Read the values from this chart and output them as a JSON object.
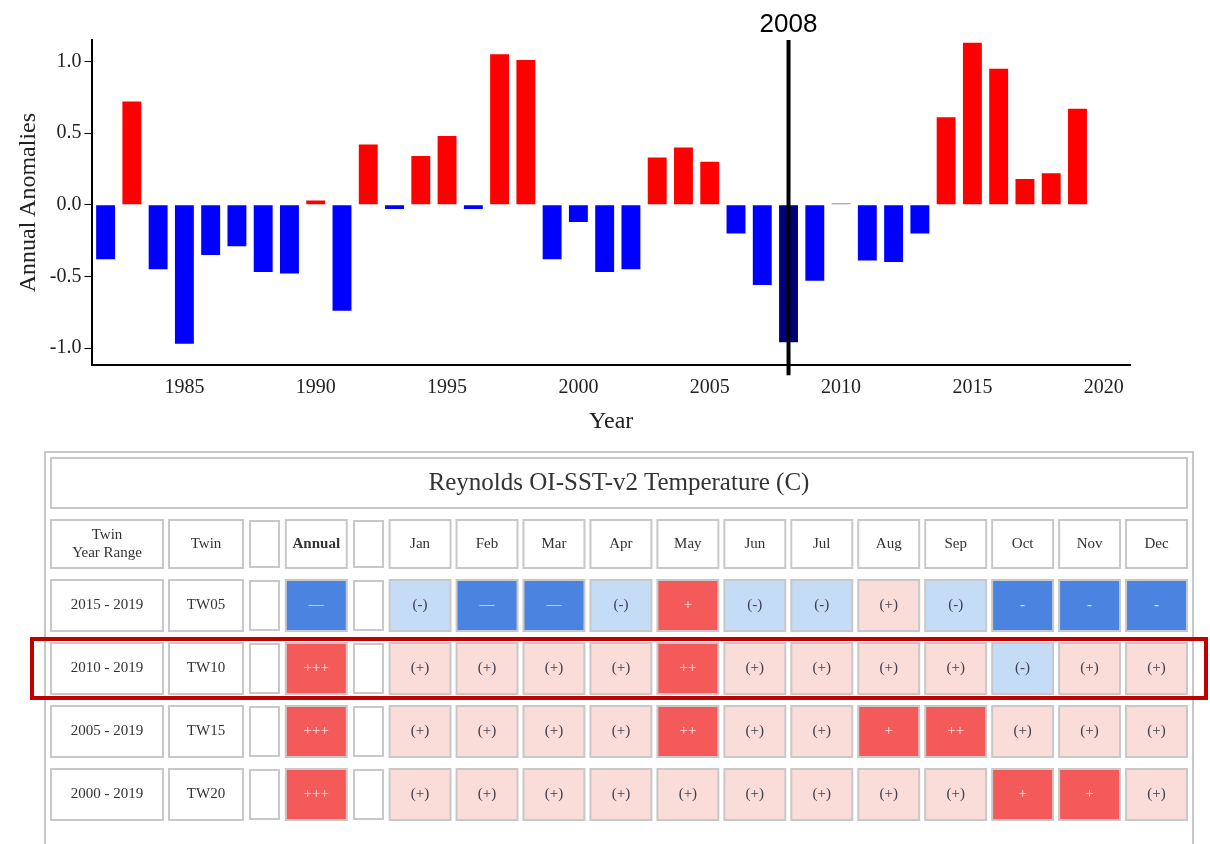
{
  "chart_data": [
    {
      "type": "bar",
      "xlabel": "Year",
      "ylabel": "Annual Anomalies",
      "x": [
        1982,
        1983,
        1984,
        1985,
        1986,
        1987,
        1988,
        1989,
        1990,
        1991,
        1992,
        1993,
        1994,
        1995,
        1996,
        1997,
        1998,
        1999,
        2000,
        2001,
        2002,
        2003,
        2004,
        2005,
        2006,
        2007,
        2008,
        2009,
        2010,
        2011,
        2012,
        2013,
        2014,
        2015,
        2016,
        2017,
        2018,
        2019
      ],
      "values": [
        -0.38,
        0.72,
        -0.45,
        -0.97,
        -0.35,
        -0.29,
        -0.47,
        -0.48,
        0.03,
        -0.74,
        0.42,
        -0.03,
        0.34,
        0.48,
        -0.03,
        1.05,
        1.01,
        -0.38,
        -0.12,
        -0.47,
        -0.45,
        0.33,
        0.4,
        0.3,
        -0.2,
        -0.56,
        -0.96,
        -0.53,
        0.01,
        -0.39,
        -0.4,
        -0.2,
        0.61,
        1.13,
        0.95,
        0.18,
        0.22,
        0.67
      ],
      "colors": [
        "#0000ff",
        "#ff0000",
        "#0000ff",
        "#0000ff",
        "#0000ff",
        "#0000ff",
        "#0000ff",
        "#0000ff",
        "#ff0000",
        "#0000ff",
        "#ff0000",
        "#0000ff",
        "#ff0000",
        "#ff0000",
        "#0000ff",
        "#ff0000",
        "#ff0000",
        "#0000ff",
        "#0000ff",
        "#0000ff",
        "#0000ff",
        "#ff0000",
        "#ff0000",
        "#ff0000",
        "#0000ff",
        "#0000ff",
        "#00007a",
        "#0000ff",
        "#c08080",
        "#0000ff",
        "#0000ff",
        "#0000ff",
        "#ff0000",
        "#ff0000",
        "#ff0000",
        "#ff0000",
        "#ff0000",
        "#ff0000"
      ],
      "xlim": [
        1981.5,
        2021
      ],
      "xticks": [
        1985,
        1990,
        1995,
        2000,
        2005,
        2010,
        2015,
        2020
      ],
      "ylim": [
        -1.12,
        1.15
      ],
      "yticks": [
        {
          "value": -1,
          "label": "-1.0"
        },
        {
          "value": -0.5,
          "label": "-0.5"
        },
        {
          "value": 0,
          "label": "0.0"
        },
        {
          "value": 0.5,
          "label": "0.5"
        },
        {
          "value": 1,
          "label": "1.0"
        }
      ],
      "ref_lines": [
        {
          "axis": "x",
          "value": 2008,
          "label": "2008",
          "color": "#000000"
        }
      ],
      "grid": false,
      "legend": false
    },
    {
      "type": "other",
      "title": "Reynolds OI-SST-v2 Temperature (C)",
      "ylabel": "Twin Year Range",
      "y2label": "Twin",
      "categories": [
        null,
        "Annual",
        null,
        "Jan",
        "Feb",
        "Mar",
        "Apr",
        "May",
        "Jun",
        "Jul",
        "Aug",
        "Sep",
        "Oct",
        "Nov",
        "Dec"
      ],
      "y_categories": [
        "2015 - 2019",
        "2010 - 2019",
        "2005 - 2019",
        "2000 - 2019"
      ],
      "y2_categories": [
        "TW05",
        "TW10",
        "TW15",
        "TW20"
      ],
      "colors": [
        [
          null,
          "#4a84e0",
          null,
          "#c4dcf6",
          "#4a84e0",
          "#4a84e0",
          "#c4dcf6",
          "#f45a5a",
          "#c4dcf6",
          "#c4dcf6",
          "#fadcd8",
          "#c4dcf6",
          "#4a84e0",
          "#4a84e0",
          "#4a84e0"
        ],
        [
          null,
          "#f45a5a",
          null,
          "#fadcd8",
          "#fadcd8",
          "#fadcd8",
          "#fadcd8",
          "#f45a5a",
          "#fadcd8",
          "#fadcd8",
          "#fadcd8",
          "#fadcd8",
          "#c4dcf6",
          "#fadcd8",
          "#fadcd8"
        ],
        [
          null,
          "#f45a5a",
          null,
          "#fadcd8",
          "#fadcd8",
          "#fadcd8",
          "#fadcd8",
          "#f45a5a",
          "#fadcd8",
          "#fadcd8",
          "#f45a5a",
          "#f45a5a",
          "#fadcd8",
          "#fadcd8",
          "#fadcd8"
        ],
        [
          null,
          "#f45a5a",
          null,
          "#fadcd8",
          "#fadcd8",
          "#fadcd8",
          "#fadcd8",
          "#fadcd8",
          "#fadcd8",
          "#fadcd8",
          "#fadcd8",
          "#fadcd8",
          "#f45a5a",
          "#f45a5a",
          "#fadcd8"
        ]
      ],
      "cell_labels": [
        [
          null,
          "—",
          null,
          "(-)",
          "—",
          "—",
          "(-)",
          "+",
          "(-)",
          "(-)",
          "(+)",
          "(-)",
          "-",
          "-",
          "-"
        ],
        [
          null,
          "+++",
          null,
          "(+)",
          "(+)",
          "(+)",
          "(+)",
          "++",
          "(+)",
          "(+)",
          "(+)",
          "(+)",
          "(-)",
          "(+)",
          "(+)"
        ],
        [
          null,
          "+++",
          null,
          "(+)",
          "(+)",
          "(+)",
          "(+)",
          "++",
          "(+)",
          "(+)",
          "+",
          "++",
          "(+)",
          "(+)",
          "(+)"
        ],
        [
          null,
          "+++",
          null,
          "(+)",
          "(+)",
          "(+)",
          "(+)",
          "(+)",
          "(+)",
          "(+)",
          "(+)",
          "(+)",
          "+",
          "+",
          "(+)"
        ]
      ]
    }
  ]
}
